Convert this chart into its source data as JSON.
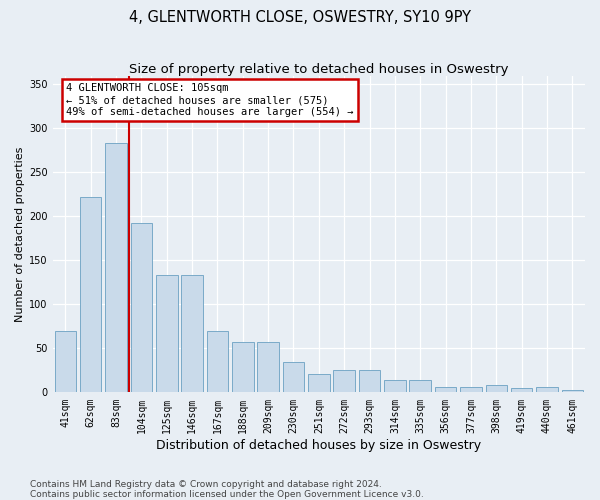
{
  "title": "4, GLENTWORTH CLOSE, OSWESTRY, SY10 9PY",
  "subtitle": "Size of property relative to detached houses in Oswestry",
  "xlabel": "Distribution of detached houses by size in Oswestry",
  "ylabel": "Number of detached properties",
  "categories": [
    "41sqm",
    "62sqm",
    "83sqm",
    "104sqm",
    "125sqm",
    "146sqm",
    "167sqm",
    "188sqm",
    "209sqm",
    "230sqm",
    "251sqm",
    "272sqm",
    "293sqm",
    "314sqm",
    "335sqm",
    "356sqm",
    "377sqm",
    "398sqm",
    "419sqm",
    "440sqm",
    "461sqm"
  ],
  "values": [
    70,
    222,
    283,
    193,
    133,
    133,
    70,
    57,
    57,
    35,
    21,
    25,
    25,
    14,
    14,
    6,
    6,
    9,
    5,
    6,
    3
  ],
  "bar_color": "#c9daea",
  "bar_edge_color": "#7aaac8",
  "marker_bar_index": 3,
  "annotation_line1": "4 GLENTWORTH CLOSE: 105sqm",
  "annotation_line2": "← 51% of detached houses are smaller (575)",
  "annotation_line3": "49% of semi-detached houses are larger (554) →",
  "annotation_box_color": "white",
  "annotation_box_edge_color": "#cc0000",
  "marker_line_color": "#cc0000",
  "ylim": [
    0,
    360
  ],
  "yticks": [
    0,
    50,
    100,
    150,
    200,
    250,
    300,
    350
  ],
  "footer_line1": "Contains HM Land Registry data © Crown copyright and database right 2024.",
  "footer_line2": "Contains public sector information licensed under the Open Government Licence v3.0.",
  "background_color": "#e8eef4",
  "grid_color": "#ffffff",
  "title_fontsize": 10.5,
  "subtitle_fontsize": 9.5,
  "ylabel_fontsize": 8,
  "xlabel_fontsize": 9,
  "tick_fontsize": 7,
  "annot_fontsize": 7.5,
  "footer_fontsize": 6.5
}
